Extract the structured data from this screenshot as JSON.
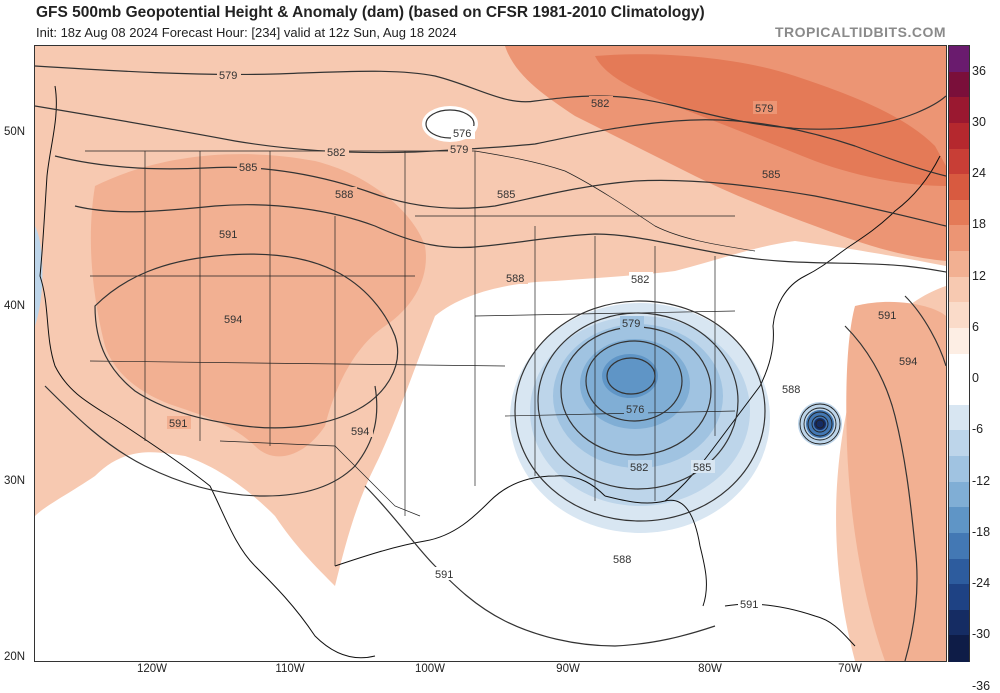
{
  "header": {
    "title": "GFS 500mb Geopotential Height & Anomaly (dam) (based on CFSR 1981-2010 Climatology)",
    "subtitle": "Init: 18z Aug 08 2024   Forecast Hour: [234]   valid at 12z Sun, Aug 18 2024",
    "brand": "TROPICALTIDBITS.COM"
  },
  "axes": {
    "lat_labels": [
      "50N",
      "40N",
      "30N",
      "20N"
    ],
    "lon_labels": [
      "120W",
      "110W",
      "100W",
      "90W",
      "80W",
      "70W"
    ]
  },
  "colorbar": {
    "labels": [
      "36",
      "30",
      "24",
      "18",
      "12",
      "6",
      "0",
      "-6",
      "-12",
      "-18",
      "-24",
      "-30",
      "-36"
    ],
    "colors": [
      "#6a1b6e",
      "#7a0f3a",
      "#9a1830",
      "#b5282e",
      "#c83e36",
      "#d85a40",
      "#e47a57",
      "#ec9574",
      "#f2b092",
      "#f7c9b1",
      "#fadbc9",
      "#fdeee4",
      "#ffffff",
      "#ffffff",
      "#d8e6f2",
      "#bdd5ea",
      "#a0c3e1",
      "#80aed5",
      "#5f95c6",
      "#4378b4",
      "#2d5c9e",
      "#1e4284",
      "#152c63",
      "#0e1c47"
    ]
  },
  "contours": {
    "labels": [
      "579",
      "576",
      "579",
      "582",
      "585",
      "588",
      "591",
      "594",
      "591",
      "582",
      "585",
      "579",
      "576",
      "582",
      "585",
      "588",
      "591",
      "594",
      "588",
      "579",
      "582",
      "585",
      "591",
      "591",
      "588",
      "594"
    ]
  }
}
